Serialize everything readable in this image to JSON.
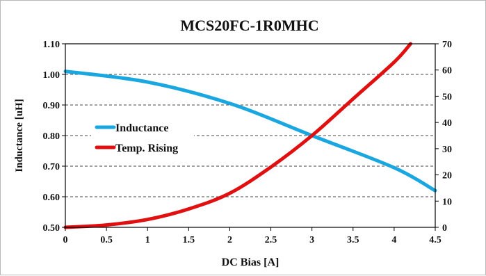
{
  "chart_data": {
    "type": "line",
    "title": "MCS20FC-1R0MHC",
    "xlabel": "DC Bias [A]",
    "ylabel": "Inductance [uH]",
    "y2label": "",
    "xlim": [
      0,
      4.5
    ],
    "ylim": [
      0.5,
      1.1
    ],
    "y2lim": [
      0,
      70
    ],
    "x_ticks": [
      "0",
      "0.5",
      "1",
      "1.5",
      "2",
      "2.5",
      "3",
      "3.5",
      "4",
      "4.5"
    ],
    "y_ticks": [
      "0.50",
      "0.60",
      "0.70",
      "0.80",
      "0.90",
      "1.00",
      "1.10"
    ],
    "y2_ticks": [
      "0",
      "10",
      "20",
      "30",
      "40",
      "50",
      "60",
      "70"
    ],
    "grid": "horizontal dashed",
    "legend_position": "left-center",
    "series": [
      {
        "name": "Inductance",
        "axis": "left",
        "color": "#1aa7e0",
        "x": [
          0,
          1,
          2,
          3,
          4,
          4.5
        ],
        "values": [
          1.01,
          0.975,
          0.905,
          0.8,
          0.695,
          0.62
        ]
      },
      {
        "name": "Temp. Rising",
        "axis": "right",
        "color": "#e01010",
        "x": [
          0,
          0.5,
          1,
          1.5,
          2,
          2.5,
          3,
          3.5,
          4,
          4.2
        ],
        "values": [
          0,
          0.9,
          3,
          7,
          13,
          23,
          35,
          49,
          63,
          70
        ]
      }
    ]
  }
}
